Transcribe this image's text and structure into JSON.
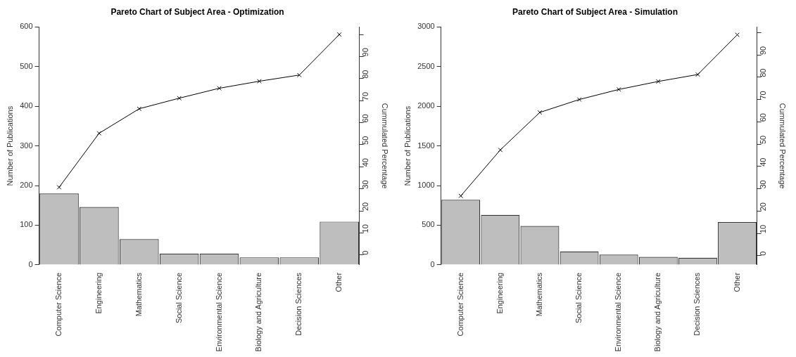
{
  "chart_data": [
    {
      "type": "bar",
      "title": "Pareto Chart of Subject Area - Optimization",
      "ylabel": "Number of Publications",
      "y2label": "Cummulated Percentage",
      "categories": [
        "Computer Science",
        "Engineering",
        "Mathematics",
        "Social Science",
        "Environmental Science",
        "Biology and Agriculture",
        "Decision Sciences",
        "Other"
      ],
      "series": [
        {
          "color": "#bebebe",
          "values": [
            180,
            146,
            65,
            28,
            28,
            19,
            19,
            109
          ]
        },
        {
          "type": "line",
          "axis": "y2",
          "color": "#000000",
          "values": [
            30.7,
            55.2,
            66.3,
            71.1,
            75.6,
            78.8,
            81.6,
            100
          ]
        }
      ],
      "ylim": [
        0,
        600
      ],
      "yticks": [
        0,
        100,
        200,
        300,
        400,
        500,
        600
      ],
      "y2lim": [
        -4.5,
        103.4
      ],
      "y2ticks": [
        0,
        10,
        20,
        30,
        40,
        50,
        60,
        70,
        80,
        90,
        {
          "value": 100,
          "label": null
        }
      ],
      "grid": false,
      "legend": false,
      "marker": "cross"
    },
    {
      "type": "bar",
      "title": "Pareto Chart of Subject Area - Simulation",
      "ylabel": "Number of Publications",
      "y2label": "Cummulated Percentage",
      "categories": [
        "Computer Science",
        "Engineering",
        "Mathematics",
        "Social Science",
        "Environmental Science",
        "Biology and Agriculture",
        "Decision Sciences",
        "Other"
      ],
      "series": [
        {
          "color": "#bebebe",
          "values": [
            820,
            630,
            490,
            170,
            130,
            100,
            90,
            540
          ]
        },
        {
          "type": "line",
          "axis": "y2",
          "color": "#000000",
          "values": [
            26.8,
            47.4,
            64.2,
            70.0,
            74.5,
            78.1,
            81.2,
            99
          ]
        }
      ],
      "ylim": [
        0,
        3000
      ],
      "yticks": [
        0,
        500,
        1000,
        1500,
        2000,
        2500,
        3000
      ],
      "y2lim": [
        -4.1,
        102.5
      ],
      "y2ticks": [
        0,
        10,
        20,
        30,
        40,
        50,
        60,
        70,
        80,
        90,
        {
          "value": 100,
          "label": null
        }
      ],
      "grid": false,
      "legend": false,
      "marker": "cross"
    }
  ]
}
